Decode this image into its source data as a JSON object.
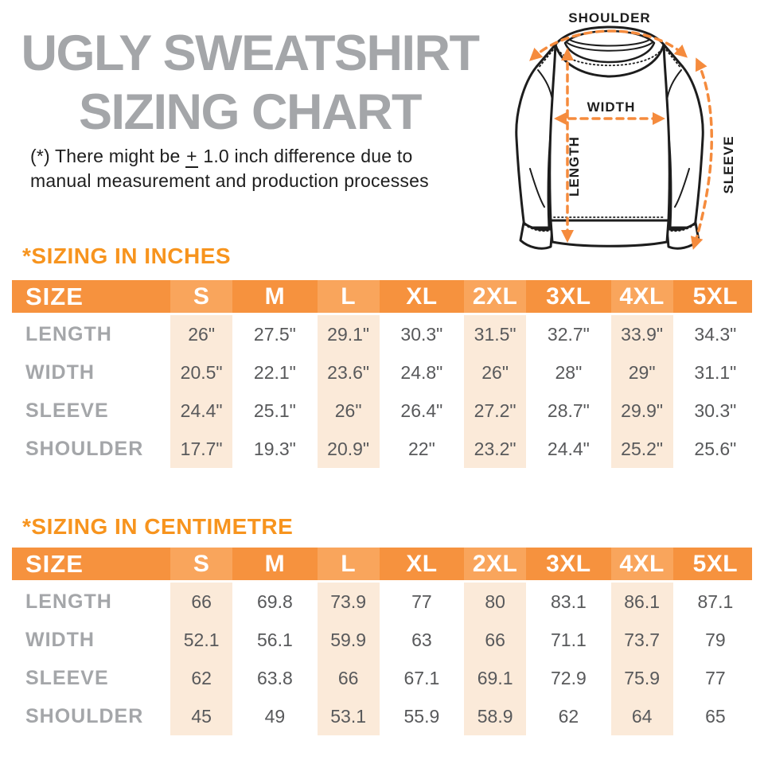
{
  "header": {
    "title_line1": "UGLY SWEATSHIRT",
    "title_line2": "SIZING CHART",
    "disclaimer": {
      "prefix": "(*) There might be ",
      "plus": "+",
      "suffix": " 1.0 inch difference due to",
      "line2": "manual measurement and production processes"
    }
  },
  "diagram": {
    "labels": {
      "shoulder": "SHOULDER",
      "width": "WIDTH",
      "length": "LENGTH",
      "sleeve": "SLEEVE"
    }
  },
  "colors": {
    "title_gray": "#a4a6a9",
    "heading_orange": "#f7941e",
    "table_header_orange": "#f6923e",
    "table_header_orange_light": "#f9a55c",
    "column_shade_peach": "#fbead9",
    "data_text_gray": "#58595b",
    "arrow_orange": "#f58b3d",
    "line_black": "#1d1d1d"
  },
  "tables": [
    {
      "heading": "*SIZING IN INCHES",
      "columns": [
        "SIZE",
        "S",
        "M",
        "L",
        "XL",
        "2XL",
        "3XL",
        "4XL",
        "5XL"
      ],
      "rows": [
        {
          "label": "LENGTH",
          "values": [
            "26\"",
            "27.5\"",
            "29.1\"",
            "30.3\"",
            "31.5\"",
            "32.7\"",
            "33.9\"",
            "34.3\""
          ]
        },
        {
          "label": "WIDTH",
          "values": [
            "20.5\"",
            "22.1\"",
            "23.6\"",
            "24.8\"",
            "26\"",
            "28\"",
            "29\"",
            "31.1\""
          ]
        },
        {
          "label": "SLEEVE",
          "values": [
            "24.4\"",
            "25.1\"",
            "26\"",
            "26.4\"",
            "27.2\"",
            "28.7\"",
            "29.9\"",
            "30.3\""
          ]
        },
        {
          "label": "SHOULDER",
          "values": [
            "17.7\"",
            "19.3\"",
            "20.9\"",
            "22\"",
            "23.2\"",
            "24.4\"",
            "25.2\"",
            "25.6\""
          ]
        }
      ]
    },
    {
      "heading": "*SIZING IN CENTIMETRE",
      "columns": [
        "SIZE",
        "S",
        "M",
        "L",
        "XL",
        "2XL",
        "3XL",
        "4XL",
        "5XL"
      ],
      "rows": [
        {
          "label": "LENGTH",
          "values": [
            "66",
            "69.8",
            "73.9",
            "77",
            "80",
            "83.1",
            "86.1",
            "87.1"
          ]
        },
        {
          "label": "WIDTH",
          "values": [
            "52.1",
            "56.1",
            "59.9",
            "63",
            "66",
            "71.1",
            "73.7",
            "79"
          ]
        },
        {
          "label": "SLEEVE",
          "values": [
            "62",
            "63.8",
            "66",
            "67.1",
            "69.1",
            "72.9",
            "75.9",
            "77"
          ]
        },
        {
          "label": "SHOULDER",
          "values": [
            "45",
            "49",
            "53.1",
            "55.9",
            "58.9",
            "62",
            "64",
            "65"
          ]
        }
      ]
    }
  ]
}
